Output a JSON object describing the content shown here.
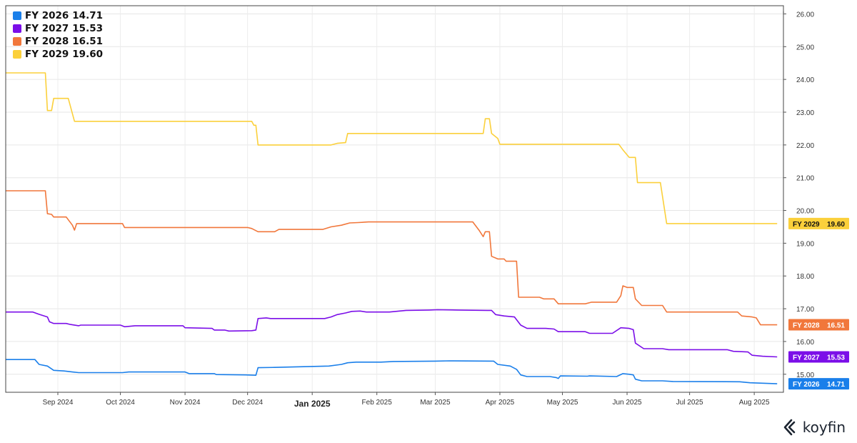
{
  "chart_data": {
    "type": "line",
    "y_axis": {
      "min": 14.45,
      "max": 26.25,
      "ticks": [
        "15.00",
        "16.00",
        "17.00",
        "18.00",
        "19.00",
        "20.00",
        "21.00",
        "22.00",
        "23.00",
        "24.00",
        "25.00",
        "26.00"
      ],
      "position": "right"
    },
    "x_axis": {
      "start": "2024-08-07",
      "end": "2025-08-15",
      "ticks": [
        {
          "date": "2024-09-01",
          "label": "Sep 2024",
          "bold": false
        },
        {
          "date": "2024-10-01",
          "label": "Oct 2024",
          "bold": false
        },
        {
          "date": "2024-11-01",
          "label": "Nov 2024",
          "bold": false
        },
        {
          "date": "2024-12-01",
          "label": "Dec 2024",
          "bold": false
        },
        {
          "date": "2025-01-01",
          "label": "Jan 2025",
          "bold": true
        },
        {
          "date": "2025-02-01",
          "label": "Feb 2025",
          "bold": false
        },
        {
          "date": "2025-03-01",
          "label": "Mar 2025",
          "bold": false
        },
        {
          "date": "2025-04-01",
          "label": "Apr 2025",
          "bold": false
        },
        {
          "date": "2025-05-01",
          "label": "May 2025",
          "bold": false
        },
        {
          "date": "2025-06-01",
          "label": "Jun 2025",
          "bold": false
        },
        {
          "date": "2025-07-01",
          "label": "Jul 2025",
          "bold": false
        },
        {
          "date": "2025-08-01",
          "label": "Aug 2025",
          "bold": false
        }
      ]
    },
    "grid": true,
    "legend_position": "top-left",
    "series": [
      {
        "name": "FY 2026",
        "last": "14.71",
        "color": "#1a7fea",
        "tag_text": "#ffffff",
        "points": [
          [
            "2024-08-07",
            15.45
          ],
          [
            "2024-08-21",
            15.45
          ],
          [
            "2024-08-23",
            15.3
          ],
          [
            "2024-08-27",
            15.25
          ],
          [
            "2024-08-30",
            15.12
          ],
          [
            "2024-09-04",
            15.1
          ],
          [
            "2024-09-08",
            15.07
          ],
          [
            "2024-09-11",
            15.05
          ],
          [
            "2024-10-02",
            15.05
          ],
          [
            "2024-10-05",
            15.07
          ],
          [
            "2024-11-01",
            15.07
          ],
          [
            "2024-11-03",
            15.02
          ],
          [
            "2024-11-15",
            15.02
          ],
          [
            "2024-11-16",
            14.99
          ],
          [
            "2024-11-30",
            14.98
          ],
          [
            "2024-12-05",
            14.97
          ],
          [
            "2024-12-06",
            15.2
          ],
          [
            "2024-12-14",
            15.21
          ],
          [
            "2025-01-09",
            15.25
          ],
          [
            "2025-01-15",
            15.3
          ],
          [
            "2025-01-18",
            15.35
          ],
          [
            "2025-01-22",
            15.37
          ],
          [
            "2025-02-03",
            15.37
          ],
          [
            "2025-02-09",
            15.39
          ],
          [
            "2025-03-01",
            15.4
          ],
          [
            "2025-03-08",
            15.41
          ],
          [
            "2025-03-29",
            15.4
          ],
          [
            "2025-03-31",
            15.3
          ],
          [
            "2025-04-06",
            15.25
          ],
          [
            "2025-04-09",
            15.15
          ],
          [
            "2025-04-11",
            14.98
          ],
          [
            "2025-04-14",
            14.93
          ],
          [
            "2025-04-25",
            14.93
          ],
          [
            "2025-04-28",
            14.9
          ],
          [
            "2025-04-29",
            14.87
          ],
          [
            "2025-04-30",
            14.95
          ],
          [
            "2025-05-13",
            14.94
          ],
          [
            "2025-05-14",
            14.95
          ],
          [
            "2025-05-27",
            14.93
          ],
          [
            "2025-05-30",
            15.02
          ],
          [
            "2025-06-02",
            15.0
          ],
          [
            "2025-06-04",
            14.98
          ],
          [
            "2025-06-05",
            14.85
          ],
          [
            "2025-06-08",
            14.8
          ],
          [
            "2025-06-18",
            14.8
          ],
          [
            "2025-06-23",
            14.78
          ],
          [
            "2025-07-25",
            14.77
          ],
          [
            "2025-07-30",
            14.74
          ],
          [
            "2025-08-12",
            14.71
          ]
        ]
      },
      {
        "name": "FY 2027",
        "last": "15.53",
        "color": "#7b0ee8",
        "tag_text": "#ffffff",
        "points": [
          [
            "2024-08-07",
            16.9
          ],
          [
            "2024-08-20",
            16.9
          ],
          [
            "2024-08-23",
            16.83
          ],
          [
            "2024-08-27",
            16.75
          ],
          [
            "2024-08-28",
            16.6
          ],
          [
            "2024-08-30",
            16.55
          ],
          [
            "2024-09-05",
            16.55
          ],
          [
            "2024-09-07",
            16.52
          ],
          [
            "2024-09-11",
            16.48
          ],
          [
            "2024-09-12",
            16.5
          ],
          [
            "2024-10-01",
            16.5
          ],
          [
            "2024-10-03",
            16.45
          ],
          [
            "2024-10-08",
            16.48
          ],
          [
            "2024-10-31",
            16.48
          ],
          [
            "2024-11-01",
            16.42
          ],
          [
            "2024-11-14",
            16.4
          ],
          [
            "2024-11-15",
            16.35
          ],
          [
            "2024-11-20",
            16.35
          ],
          [
            "2024-11-22",
            16.32
          ],
          [
            "2024-12-03",
            16.33
          ],
          [
            "2024-12-05",
            16.35
          ],
          [
            "2024-12-06",
            16.7
          ],
          [
            "2024-12-10",
            16.72
          ],
          [
            "2024-12-12",
            16.7
          ],
          [
            "2024-12-20",
            16.7
          ],
          [
            "2025-01-07",
            16.7
          ],
          [
            "2025-01-10",
            16.75
          ],
          [
            "2025-01-13",
            16.82
          ],
          [
            "2025-01-17",
            16.87
          ],
          [
            "2025-01-20",
            16.92
          ],
          [
            "2025-01-24",
            16.93
          ],
          [
            "2025-01-27",
            16.9
          ],
          [
            "2025-02-07",
            16.9
          ],
          [
            "2025-02-15",
            16.95
          ],
          [
            "2025-02-26",
            16.96
          ],
          [
            "2025-03-02",
            16.97
          ],
          [
            "2025-03-12",
            16.96
          ],
          [
            "2025-03-26",
            16.95
          ],
          [
            "2025-03-28",
            16.95
          ],
          [
            "2025-03-30",
            16.82
          ],
          [
            "2025-04-03",
            16.78
          ],
          [
            "2025-04-08",
            16.75
          ],
          [
            "2025-04-11",
            16.5
          ],
          [
            "2025-04-14",
            16.4
          ],
          [
            "2025-04-23",
            16.4
          ],
          [
            "2025-04-27",
            16.38
          ],
          [
            "2025-04-29",
            16.3
          ],
          [
            "2025-05-12",
            16.3
          ],
          [
            "2025-05-14",
            16.25
          ],
          [
            "2025-05-25",
            16.25
          ],
          [
            "2025-05-29",
            16.42
          ],
          [
            "2025-06-02",
            16.4
          ],
          [
            "2025-06-04",
            16.36
          ],
          [
            "2025-06-05",
            15.95
          ],
          [
            "2025-06-09",
            15.78
          ],
          [
            "2025-06-18",
            15.78
          ],
          [
            "2025-06-21",
            15.75
          ],
          [
            "2025-07-19",
            15.75
          ],
          [
            "2025-07-22",
            15.7
          ],
          [
            "2025-07-29",
            15.68
          ],
          [
            "2025-07-31",
            15.58
          ],
          [
            "2025-08-05",
            15.55
          ],
          [
            "2025-08-12",
            15.53
          ]
        ]
      },
      {
        "name": "FY 2028",
        "last": "16.51",
        "color": "#f1773b",
        "tag_text": "#ffffff",
        "points": [
          [
            "2024-08-07",
            20.6
          ],
          [
            "2024-08-26",
            20.6
          ],
          [
            "2024-08-27",
            19.9
          ],
          [
            "2024-08-29",
            19.88
          ],
          [
            "2024-08-30",
            19.8
          ],
          [
            "2024-09-05",
            19.8
          ],
          [
            "2024-09-08",
            19.55
          ],
          [
            "2024-09-09",
            19.4
          ],
          [
            "2024-09-10",
            19.6
          ],
          [
            "2024-10-02",
            19.6
          ],
          [
            "2024-10-03",
            19.48
          ],
          [
            "2024-11-10",
            19.48
          ],
          [
            "2024-12-01",
            19.48
          ],
          [
            "2024-12-03",
            19.45
          ],
          [
            "2024-12-06",
            19.35
          ],
          [
            "2024-12-14",
            19.35
          ],
          [
            "2024-12-16",
            19.42
          ],
          [
            "2025-01-06",
            19.42
          ],
          [
            "2025-01-10",
            19.5
          ],
          [
            "2025-01-15",
            19.55
          ],
          [
            "2025-01-19",
            19.62
          ],
          [
            "2025-01-23",
            19.63
          ],
          [
            "2025-01-28",
            19.65
          ],
          [
            "2025-03-19",
            19.65
          ],
          [
            "2025-03-22",
            19.4
          ],
          [
            "2025-03-24",
            19.2
          ],
          [
            "2025-03-25",
            19.35
          ],
          [
            "2025-03-27",
            19.35
          ],
          [
            "2025-03-28",
            18.6
          ],
          [
            "2025-03-31",
            18.52
          ],
          [
            "2025-04-03",
            18.52
          ],
          [
            "2025-04-04",
            18.45
          ],
          [
            "2025-04-09",
            18.45
          ],
          [
            "2025-04-10",
            17.35
          ],
          [
            "2025-04-20",
            17.35
          ],
          [
            "2025-04-22",
            17.3
          ],
          [
            "2025-04-27",
            17.3
          ],
          [
            "2025-04-29",
            17.15
          ],
          [
            "2025-05-12",
            17.15
          ],
          [
            "2025-05-15",
            17.2
          ],
          [
            "2025-05-27",
            17.2
          ],
          [
            "2025-05-29",
            17.4
          ],
          [
            "2025-05-30",
            17.7
          ],
          [
            "2025-06-01",
            17.65
          ],
          [
            "2025-06-04",
            17.65
          ],
          [
            "2025-06-05",
            17.3
          ],
          [
            "2025-06-08",
            17.1
          ],
          [
            "2025-06-18",
            17.1
          ],
          [
            "2025-06-20",
            16.9
          ],
          [
            "2025-07-24",
            16.9
          ],
          [
            "2025-07-26",
            16.78
          ],
          [
            "2025-07-31",
            16.75
          ],
          [
            "2025-08-02",
            16.72
          ],
          [
            "2025-08-04",
            16.51
          ],
          [
            "2025-08-12",
            16.51
          ]
        ]
      },
      {
        "name": "FY 2029",
        "last": "19.60",
        "color": "#fbd03b",
        "tag_text": "#111111",
        "points": [
          [
            "2024-08-07",
            24.2
          ],
          [
            "2024-08-26",
            24.2
          ],
          [
            "2024-08-27",
            23.05
          ],
          [
            "2024-08-29",
            23.05
          ],
          [
            "2024-08-30",
            23.42
          ],
          [
            "2024-09-06",
            23.42
          ],
          [
            "2024-09-09",
            22.72
          ],
          [
            "2024-10-15",
            22.72
          ],
          [
            "2024-11-30",
            22.72
          ],
          [
            "2024-12-03",
            22.72
          ],
          [
            "2024-12-04",
            22.6
          ],
          [
            "2024-12-05",
            22.6
          ],
          [
            "2024-12-06",
            22.0
          ],
          [
            "2025-01-10",
            22.0
          ],
          [
            "2025-01-13",
            22.05
          ],
          [
            "2025-01-17",
            22.07
          ],
          [
            "2025-01-18",
            22.35
          ],
          [
            "2025-03-24",
            22.35
          ],
          [
            "2025-03-25",
            22.8
          ],
          [
            "2025-03-27",
            22.8
          ],
          [
            "2025-03-28",
            22.35
          ],
          [
            "2025-03-31",
            22.2
          ],
          [
            "2025-04-01",
            22.02
          ],
          [
            "2025-05-28",
            22.02
          ],
          [
            "2025-05-30",
            21.85
          ],
          [
            "2025-06-02",
            21.62
          ],
          [
            "2025-06-05",
            21.62
          ],
          [
            "2025-06-06",
            20.85
          ],
          [
            "2025-06-17",
            20.85
          ],
          [
            "2025-06-20",
            19.6
          ],
          [
            "2025-08-12",
            19.6
          ]
        ]
      }
    ]
  },
  "watermark": {
    "text": "koyfin",
    "icon": "koyfin-logo-icon"
  }
}
